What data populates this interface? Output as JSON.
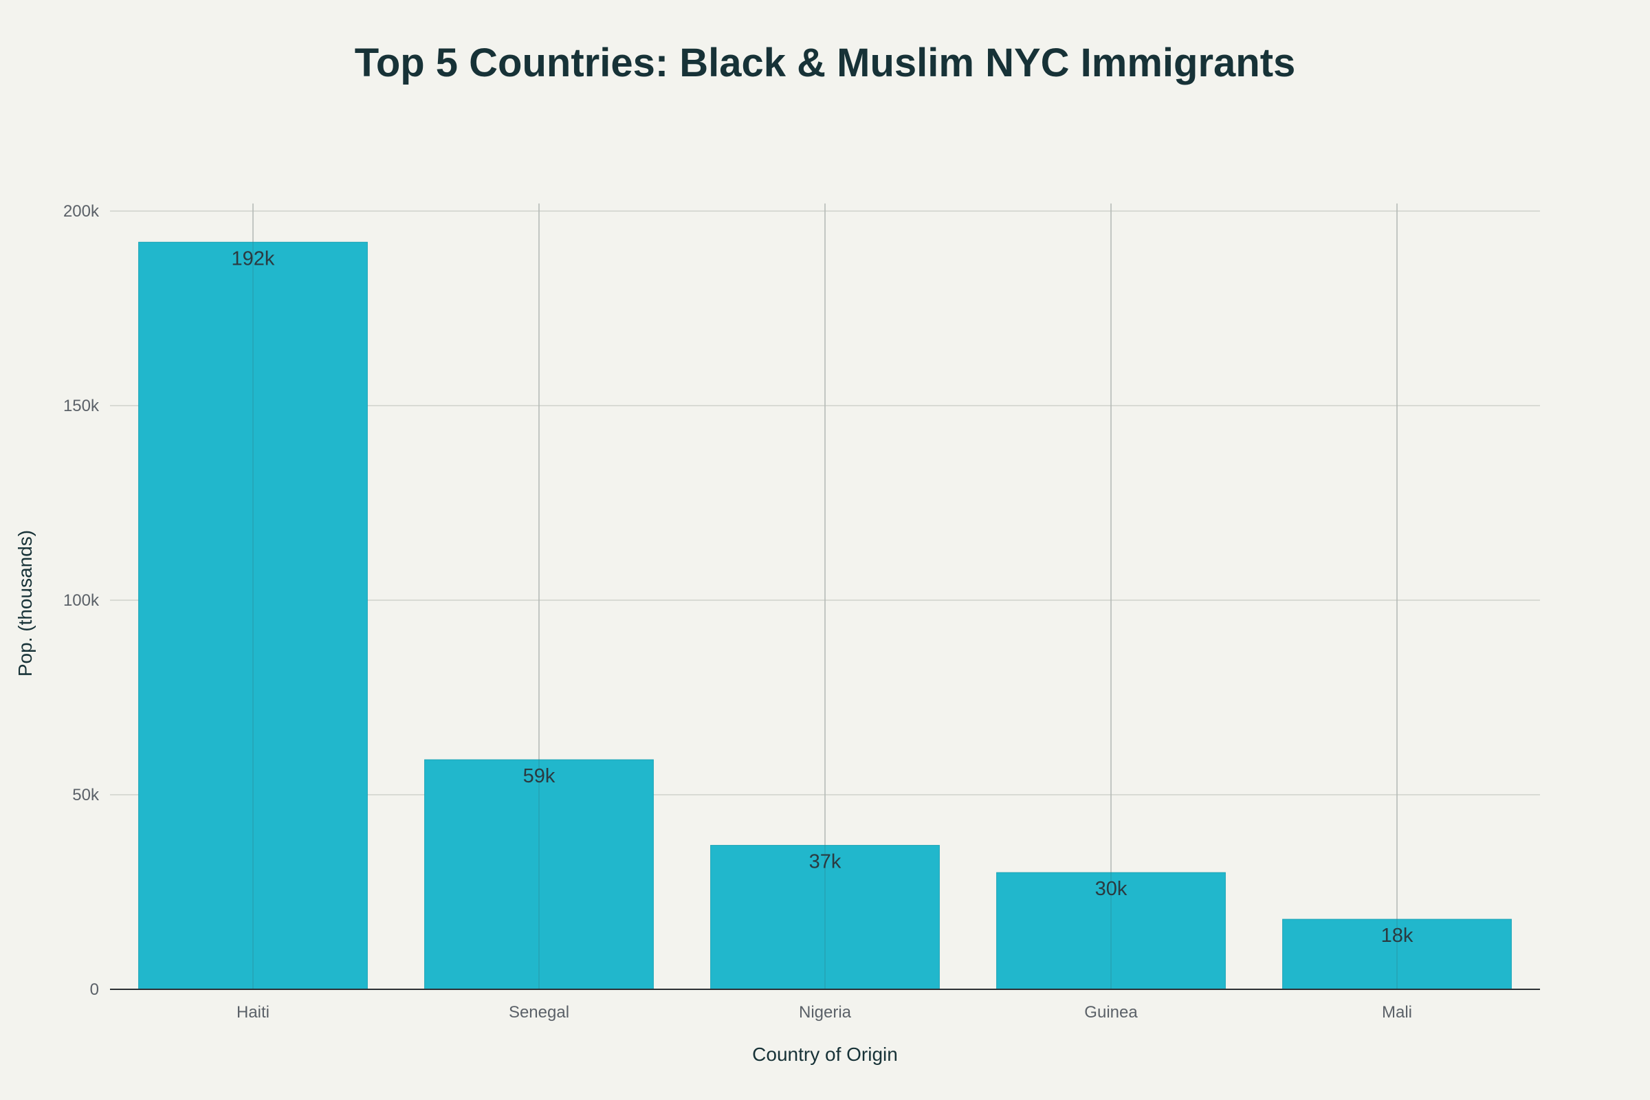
{
  "chart_data": {
    "type": "bar",
    "title": "Top 5 Countries: Black & Muslim NYC Immigrants",
    "xlabel": "Country of Origin",
    "ylabel": "Pop. (thousands)",
    "categories": [
      "Haiti",
      "Senegal",
      "Nigeria",
      "Guinea",
      "Mali"
    ],
    "values": [
      192000,
      59000,
      37000,
      30000,
      18000
    ],
    "data_labels": [
      "192k",
      "59k",
      "37k",
      "30k",
      "18k"
    ],
    "ylim": [
      0,
      200000
    ],
    "yticks": [
      0,
      50000,
      100000,
      150000,
      200000
    ],
    "ytick_labels": [
      "0",
      "50k",
      "100k",
      "150k",
      "200k"
    ],
    "grid": true,
    "bar_color": "#21b7cc",
    "background": "#f3f3ee"
  }
}
